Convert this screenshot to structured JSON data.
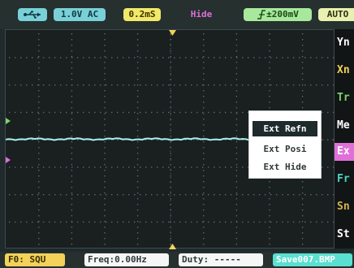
{
  "status": {
    "usb_icon": "usb-icon",
    "channel": "1.0V AC",
    "timebase": "0.2mS",
    "hide": "Hide",
    "trigger_icon": "rising-edge-icon",
    "trigger_level": "±200mV",
    "mode": "AUTO"
  },
  "side_menu": {
    "items": [
      {
        "label": "Yn",
        "color": "#ffffff"
      },
      {
        "label": "Xn",
        "color": "#f3d25b"
      },
      {
        "label": "Tr",
        "color": "#7cd36a"
      },
      {
        "label": "Me",
        "color": "#ffffff"
      },
      {
        "label": "Ex",
        "color": "#ffffff",
        "selected": true
      },
      {
        "label": "Fr",
        "color": "#4fd2c6"
      },
      {
        "label": "Sn",
        "color": "#d8b24e"
      },
      {
        "label": "St",
        "color": "#ffffff"
      }
    ]
  },
  "popup": {
    "items": [
      {
        "label": "Ext Refn",
        "selected": true
      },
      {
        "label": "Ext Posi",
        "selected": false
      },
      {
        "label": "Ext Hide",
        "selected": false
      }
    ]
  },
  "bottom": {
    "f0": "F0: SQU",
    "freq": "Freq:0.00Hz",
    "duty": "Duty: -----",
    "save": "Save007.BMP"
  },
  "colors": {
    "trace": "#a7f0ea",
    "grid_dot": "#5c6a6c",
    "marker_green": "#7cd36a",
    "marker_pink": "#e06fd8",
    "marker_yellow": "#f3d25b"
  }
}
